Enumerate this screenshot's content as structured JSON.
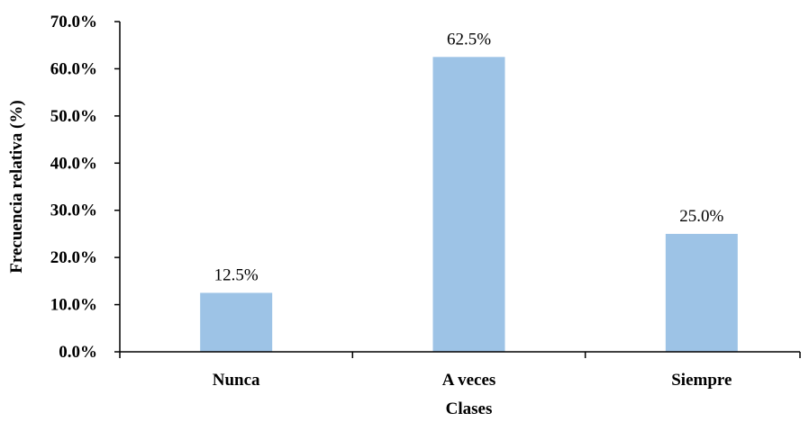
{
  "chart_data": {
    "type": "bar",
    "title": "",
    "xlabel": "Clases",
    "ylabel": "Frecuencia relativa (%)",
    "categories": [
      "Nunca",
      "A veces",
      "Siempre"
    ],
    "values": [
      12.5,
      62.5,
      25.0
    ],
    "data_labels": [
      "12.5%",
      "62.5%",
      "25.0%"
    ],
    "ylim": [
      0,
      70
    ],
    "yticks": [
      0,
      10,
      20,
      30,
      40,
      50,
      60,
      70
    ],
    "ytick_labels": [
      "0.0%",
      "10.0%",
      "20.0%",
      "30.0%",
      "40.0%",
      "50.0%",
      "60.0%",
      "70.0%"
    ],
    "grid": false,
    "legend": "none",
    "bar_color": "#9dc3e6",
    "axis_color": "#000000"
  }
}
